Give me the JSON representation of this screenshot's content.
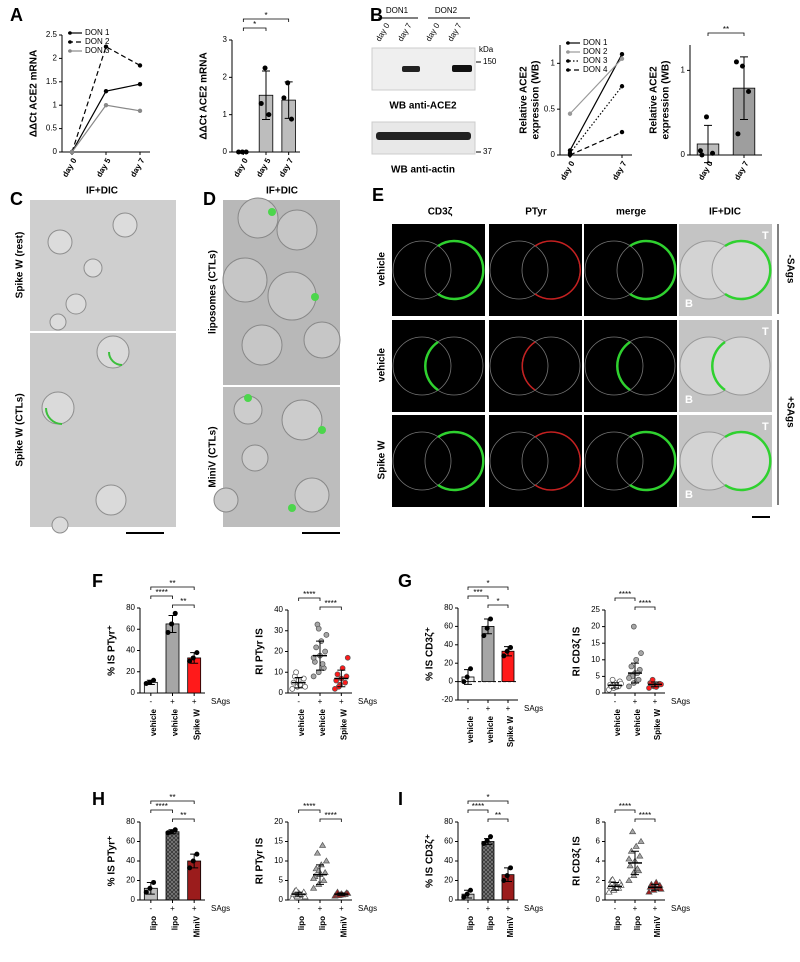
{
  "panel_letters": [
    "A",
    "B",
    "C",
    "D",
    "E",
    "F",
    "G",
    "H",
    "I"
  ],
  "blot": {
    "donors": [
      "DON1",
      "DON2"
    ],
    "lanes": [
      "day 0",
      "day 7",
      "day 0",
      "day 7"
    ],
    "unit": "kDa",
    "markers": [
      "150",
      "37"
    ],
    "captions": [
      "WB anti-ACE2",
      "WB anti-actin"
    ]
  },
  "microscopy": {
    "C": {
      "header": "IF+DIC",
      "rows": [
        "Spike W (rest)",
        "Spike W (CTLs)"
      ]
    },
    "D": {
      "header": "IF+DIC",
      "rows": [
        "liposomes (CTLs)",
        "MiniV (CTLs)"
      ]
    },
    "E": {
      "columns": [
        "CD3ζ",
        "PTyr",
        "merge",
        "IF+DIC"
      ],
      "rows": [
        "vehicle",
        "vehicle",
        "Spike W"
      ],
      "tags": [
        "T",
        "B"
      ],
      "groups": [
        "-SAgs",
        "+SAgs"
      ]
    }
  },
  "chart_data": [
    {
      "type": "line",
      "ylabel": "ΔΔCt ACE2 mRNA",
      "categories": [
        "day 0",
        "day 5",
        "day 7"
      ],
      "legend": "top-left",
      "series": [
        {
          "name": "DON 1",
          "color": "#000000",
          "dash": "solid",
          "values": [
            0,
            1.3,
            1.45
          ]
        },
        {
          "name": "DON 2",
          "color": "#000000",
          "dash": "dashed",
          "values": [
            0,
            2.25,
            1.85
          ]
        },
        {
          "name": "DON 3",
          "color": "#888888",
          "dash": "solid",
          "values": [
            0,
            1.0,
            0.88
          ]
        }
      ],
      "ylim": [
        0,
        2.5
      ],
      "yticks": [
        0,
        0.5,
        1,
        1.5,
        2,
        2.5
      ]
    },
    {
      "type": "bar",
      "ylabel": "ΔΔCt ACE2 mRNA",
      "categories": [
        "day 0",
        "day 5",
        "day 7"
      ],
      "values": [
        0,
        1.52,
        1.39
      ],
      "errors": [
        0,
        0.65,
        0.49
      ],
      "colors": [
        "#d9d9d9",
        "#bdbdbd",
        "#bdbdbd"
      ],
      "points": [
        [
          0,
          0,
          0
        ],
        [
          1.3,
          2.25,
          1.0
        ],
        [
          1.45,
          1.85,
          0.88
        ]
      ],
      "ylim": [
        0,
        3
      ],
      "yticks": [
        0,
        1,
        2,
        3
      ],
      "annotations": [
        {
          "text": "*",
          "between": [
            0,
            1
          ]
        },
        {
          "text": "*",
          "between": [
            0,
            2
          ]
        }
      ]
    },
    {
      "type": "line",
      "ylabel": [
        "Relative ACE2",
        "expression (WB)"
      ],
      "categories": [
        "day 0",
        "day 7"
      ],
      "legend": "top-left",
      "series": [
        {
          "name": "DON 1",
          "color": "#000000",
          "dash": "solid",
          "values": [
            0.05,
            1.1
          ]
        },
        {
          "name": "DON 2",
          "color": "#999999",
          "dash": "solid",
          "values": [
            0.45,
            1.05
          ]
        },
        {
          "name": "DON 3",
          "color": "#000000",
          "dash": "dotted",
          "values": [
            0.02,
            0.75
          ]
        },
        {
          "name": "DON 4",
          "color": "#000000",
          "dash": "dashed",
          "values": [
            0,
            0.25
          ]
        }
      ],
      "ylim": [
        0,
        1.2
      ],
      "yticks": [
        0,
        0.5,
        1
      ]
    },
    {
      "type": "bar",
      "ylabel": [
        "Relative ACE2",
        "expression (WB)"
      ],
      "categories": [
        "day 0",
        "day 7"
      ],
      "values": [
        0.13,
        0.79
      ],
      "errors": [
        0.22,
        0.37
      ],
      "colors": [
        "#bdbdbd",
        "#9e9e9e"
      ],
      "points": [
        [
          0.05,
          0.45,
          0.02,
          0
        ],
        [
          1.1,
          1.05,
          0.75,
          0.25
        ]
      ],
      "ylim": [
        0,
        1.3
      ],
      "yticks": [
        0,
        1
      ],
      "annotations": [
        {
          "text": "**",
          "between": [
            0,
            1
          ]
        }
      ]
    },
    {
      "type": "bar",
      "ylabel": "% IS PTyr⁺",
      "categories": [
        "vehicle",
        "vehicle",
        "Spike W"
      ],
      "signs": [
        "-",
        "+",
        "+"
      ],
      "signs_label": "SAgs",
      "values": [
        10,
        65,
        33
      ],
      "errors": [
        2,
        8,
        5
      ],
      "colors": [
        "#f2f2f2",
        "#a6a6a6",
        "#ff1a1a"
      ],
      "points": [
        [
          9,
          10,
          12
        ],
        [
          57,
          65,
          75
        ],
        [
          30,
          33,
          38
        ]
      ],
      "ylim": [
        0,
        80
      ],
      "yticks": [
        0,
        20,
        40,
        60,
        80
      ],
      "annotations": [
        {
          "text": "****",
          "between": [
            0,
            1
          ]
        },
        {
          "text": "**",
          "between": [
            0,
            2
          ]
        },
        {
          "text": "**",
          "between": [
            1,
            2
          ]
        }
      ]
    },
    {
      "type": "strip",
      "ylabel": "RI PTyr IS",
      "categories": [
        "vehicle",
        "vehicle",
        "Spike W"
      ],
      "signs": [
        "-",
        "+",
        "+"
      ],
      "signs_label": "SAgs",
      "marker": "circle",
      "colors": [
        "#ffffff",
        "#a6a6a6",
        "#ff1a1a"
      ],
      "points": [
        [
          2,
          3,
          4,
          5,
          6,
          7,
          8,
          4,
          3,
          10
        ],
        [
          8,
          10,
          12,
          15,
          18,
          20,
          22,
          25,
          28,
          33,
          14,
          17,
          31
        ],
        [
          2,
          4,
          5,
          6,
          7,
          8,
          9,
          12,
          17,
          3
        ]
      ],
      "means": [
        5,
        18,
        7
      ],
      "sd": [
        2.5,
        7,
        4
      ],
      "ylim": [
        0,
        40
      ],
      "yticks": [
        0,
        10,
        20,
        30,
        40
      ],
      "annotations": [
        {
          "text": "****",
          "between": [
            0,
            1
          ]
        },
        {
          "text": "****",
          "between": [
            1,
            2
          ]
        }
      ]
    },
    {
      "type": "bar",
      "ylabel": "% IS CD3ζ⁺",
      "categories": [
        "vehicle",
        "vehicle",
        "Spike W"
      ],
      "signs": [
        "-",
        "+",
        "+"
      ],
      "signs_label": "SAgs",
      "zero_line": true,
      "values": [
        5,
        60,
        33
      ],
      "errors": [
        8,
        8,
        5
      ],
      "colors": [
        "#f2f2f2",
        "#a6a6a6",
        "#ff1a1a"
      ],
      "points": [
        [
          0,
          5,
          14
        ],
        [
          50,
          58,
          68
        ],
        [
          28,
          33,
          37
        ]
      ],
      "ylim": [
        -20,
        80
      ],
      "yticks": [
        -20,
        0,
        20,
        40,
        60,
        80
      ],
      "annotations": [
        {
          "text": "***",
          "between": [
            0,
            1
          ]
        },
        {
          "text": "*",
          "between": [
            0,
            2
          ]
        },
        {
          "text": "*",
          "between": [
            1,
            2
          ]
        }
      ]
    },
    {
      "type": "strip",
      "ylabel": "RI CD3ζ IS",
      "categories": [
        "vehicle",
        "vehicle",
        "Spike W"
      ],
      "signs": [
        "-",
        "+",
        "+"
      ],
      "signs_label": "SAgs",
      "marker": "circle",
      "colors": [
        "#ffffff",
        "#a6a6a6",
        "#ff1a1a"
      ],
      "points": [
        [
          1,
          1.5,
          2,
          2.5,
          3,
          3.5,
          2,
          1.8,
          2.8,
          4
        ],
        [
          2,
          3,
          4,
          5,
          6,
          7,
          8,
          10,
          12,
          5,
          6,
          4.5,
          20
        ],
        [
          1.5,
          2,
          2.5,
          3,
          2.2,
          2.8,
          3.2,
          1.8,
          2.6,
          4
        ]
      ],
      "means": [
        2.3,
        6,
        2.6
      ],
      "sd": [
        0.8,
        3,
        0.7
      ],
      "ylim": [
        0,
        25
      ],
      "yticks": [
        0,
        5,
        10,
        15,
        20,
        25
      ],
      "annotations": [
        {
          "text": "****",
          "between": [
            0,
            1
          ]
        },
        {
          "text": "****",
          "between": [
            1,
            2
          ]
        }
      ]
    },
    {
      "type": "bar",
      "ylabel": "% IS PTyr⁺",
      "categories": [
        "lipo",
        "lipo",
        "MiniV"
      ],
      "signs": [
        "-",
        "+",
        "+"
      ],
      "signs_label": "SAgs",
      "values": [
        12,
        70,
        40
      ],
      "errors": [
        6,
        2,
        7
      ],
      "colors": [
        "#bfbfbf",
        "#7f7f7f",
        "#9b1c1c"
      ],
      "hatch": [
        false,
        true,
        false
      ],
      "points": [
        [
          8,
          12,
          18
        ],
        [
          69,
          70,
          72
        ],
        [
          33,
          40,
          47
        ]
      ],
      "ylim": [
        0,
        80
      ],
      "yticks": [
        0,
        20,
        40,
        60,
        80
      ],
      "annotations": [
        {
          "text": "****",
          "between": [
            0,
            1
          ]
        },
        {
          "text": "**",
          "between": [
            0,
            2
          ]
        },
        {
          "text": "**",
          "between": [
            1,
            2
          ]
        }
      ]
    },
    {
      "type": "strip",
      "ylabel": "RI PTyr IS",
      "categories": [
        "lipo",
        "lipo",
        "MiniV"
      ],
      "signs": [
        "-",
        "+",
        "+"
      ],
      "signs_label": "SAgs",
      "marker": "triangle",
      "colors": [
        "#ffffff",
        "#a6a6a6",
        "#9b1c1c"
      ],
      "points": [
        [
          0.5,
          1,
          1.2,
          1.5,
          1.8,
          2,
          2.2,
          1.4,
          0.8,
          2.5
        ],
        [
          3,
          4,
          5,
          6,
          6.5,
          7,
          8,
          9,
          10,
          12,
          14,
          5.5,
          7.5
        ],
        [
          1,
          1.2,
          1.4,
          1.5,
          1.6,
          1.8,
          2,
          1.3,
          1.7,
          1.1
        ]
      ],
      "means": [
        1.5,
        6.5,
        1.5
      ],
      "sd": [
        0.5,
        2.5,
        0.3
      ],
      "ylim": [
        0,
        20
      ],
      "yticks": [
        0,
        5,
        10,
        15,
        20
      ],
      "annotations": [
        {
          "text": "****",
          "between": [
            0,
            1
          ]
        },
        {
          "text": "****",
          "between": [
            1,
            2
          ]
        }
      ]
    },
    {
      "type": "bar",
      "ylabel": "% IS CD3ζ⁺",
      "categories": [
        "lipo",
        "lipo",
        "MiniV"
      ],
      "signs": [
        "-",
        "+",
        "+"
      ],
      "signs_label": "SAgs",
      "values": [
        6,
        60,
        26
      ],
      "errors": [
        4,
        3,
        7
      ],
      "colors": [
        "#bfbfbf",
        "#7f7f7f",
        "#9b1c1c"
      ],
      "hatch": [
        false,
        true,
        false
      ],
      "points": [
        [
          3,
          6,
          10
        ],
        [
          58,
          61,
          65
        ],
        [
          20,
          25,
          33
        ]
      ],
      "ylim": [
        0,
        80
      ],
      "yticks": [
        0,
        20,
        40,
        60,
        80
      ],
      "annotations": [
        {
          "text": "****",
          "between": [
            0,
            1
          ]
        },
        {
          "text": "*",
          "between": [
            0,
            2
          ]
        },
        {
          "text": "**",
          "between": [
            1,
            2
          ]
        }
      ]
    },
    {
      "type": "strip",
      "ylabel": "RI CD3ζ IS",
      "categories": [
        "lipo",
        "lipo",
        "MiniV"
      ],
      "signs": [
        "-",
        "+",
        "+"
      ],
      "signs_label": "SAgs",
      "marker": "triangle",
      "colors": [
        "#ffffff",
        "#a6a6a6",
        "#9b1c1c"
      ],
      "points": [
        [
          0.8,
          1,
          1.2,
          1.4,
          1.6,
          1.8,
          2,
          1.3,
          1.5,
          2.1
        ],
        [
          2,
          2.5,
          3,
          3.5,
          4,
          4.5,
          5,
          5.5,
          6,
          7,
          3.2,
          4.2,
          2.8
        ],
        [
          0.8,
          1,
          1.2,
          1.3,
          1.4,
          1.5,
          1.6,
          1.8,
          1.1,
          1.3
        ]
      ],
      "means": [
        1.4,
        3.8,
        1.3
      ],
      "sd": [
        0.4,
        1.2,
        0.3
      ],
      "ylim": [
        0,
        8
      ],
      "yticks": [
        0,
        2,
        4,
        6,
        8
      ],
      "annotations": [
        {
          "text": "****",
          "between": [
            0,
            1
          ]
        },
        {
          "text": "****",
          "between": [
            1,
            2
          ]
        }
      ]
    }
  ]
}
